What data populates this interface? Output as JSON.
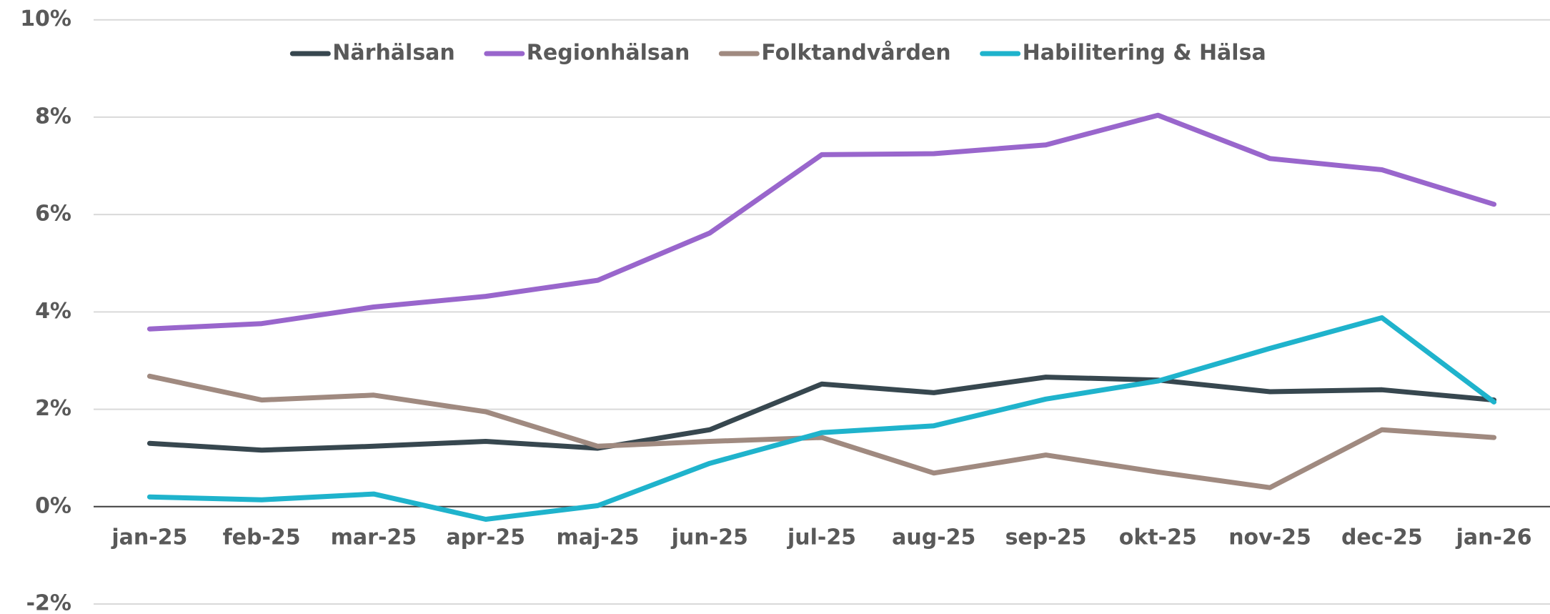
{
  "chart_data": {
    "type": "line",
    "categories": [
      "jan-25",
      "feb-25",
      "mar-25",
      "apr-25",
      "maj-25",
      "jun-25",
      "jul-25",
      "aug-25",
      "sep-25",
      "okt-25",
      "nov-25",
      "dec-25",
      "jan-26"
    ],
    "series": [
      {
        "name": "Närhälsan",
        "color": "#37474f",
        "values": [
          1.3,
          1.16,
          1.24,
          1.34,
          1.2,
          1.58,
          2.52,
          2.34,
          2.66,
          2.6,
          2.36,
          2.4,
          2.19
        ]
      },
      {
        "name": "Regionhälsan",
        "color": "#9966cc",
        "values": [
          3.65,
          3.76,
          4.1,
          4.32,
          4.65,
          5.62,
          7.23,
          7.25,
          7.43,
          8.04,
          7.15,
          6.92,
          6.21
        ]
      },
      {
        "name": "Folktandvården",
        "color": "#a08a80",
        "values": [
          2.68,
          2.19,
          2.29,
          1.95,
          1.24,
          1.34,
          1.42,
          0.69,
          1.06,
          0.71,
          0.39,
          1.58,
          1.42
        ]
      },
      {
        "name": "Habilitering & Hälsa",
        "color": "#1fb3cc",
        "values": [
          0.2,
          0.14,
          0.26,
          -0.26,
          0.02,
          0.89,
          1.52,
          1.66,
          2.21,
          2.58,
          3.25,
          3.88,
          2.15
        ]
      }
    ],
    "ylim": [
      -2,
      10
    ],
    "yticks": [
      {
        "value": -2,
        "label": "-2%"
      },
      {
        "value": 0,
        "label": "0%"
      },
      {
        "value": 2,
        "label": "2%"
      },
      {
        "value": 4,
        "label": "4%"
      },
      {
        "value": 6,
        "label": "6%"
      },
      {
        "value": 8,
        "label": "8%"
      },
      {
        "value": 10,
        "label": "10%"
      }
    ],
    "grid": true,
    "legend": "top"
  }
}
